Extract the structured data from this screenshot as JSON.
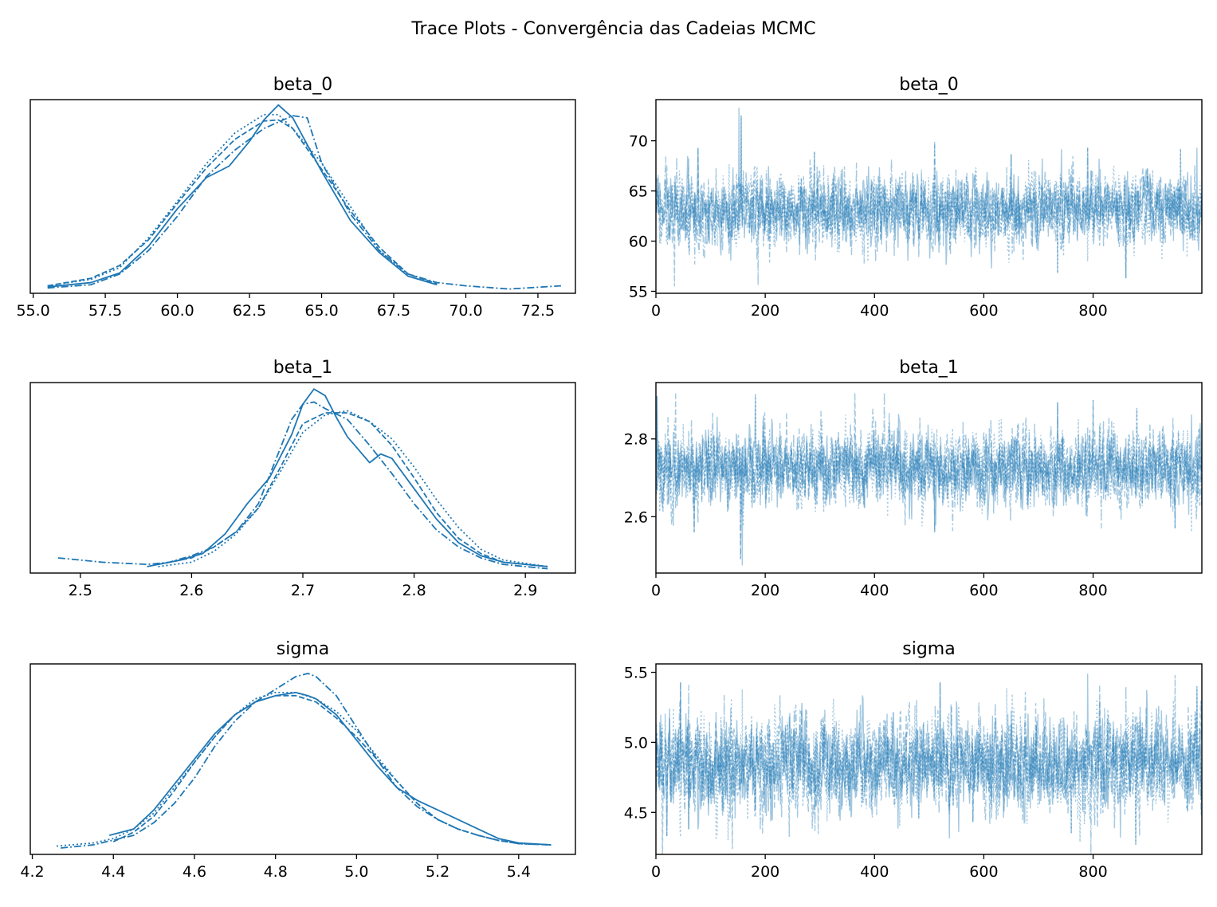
{
  "figure": {
    "suptitle": "Trace Plots - Convergência das Cadeias MCMC",
    "line_color": "#1f77b4",
    "trace_alpha": 0.4
  },
  "chart_data": [
    {
      "type": "line",
      "id": "kde-beta0",
      "title": "beta_0",
      "xlim": [
        54.9,
        73.8
      ],
      "ylim": [
        -0.004,
        0.177
      ],
      "xticks": [
        55.0,
        57.5,
        60.0,
        62.5,
        65.0,
        67.5,
        70.0,
        72.5
      ],
      "xtick_labels": [
        "55.0",
        "57.5",
        "60.0",
        "62.5",
        "65.0",
        "67.5",
        "70.0",
        "72.5"
      ],
      "yticks": [],
      "series": [
        {
          "linestyle": "solid",
          "x": [
            55.5,
            57.0,
            58.0,
            59.0,
            60.0,
            61.0,
            61.8,
            62.5,
            63.0,
            63.5,
            64.0,
            65.0,
            66.0,
            67.0,
            68.0,
            69.0
          ],
          "y": [
            0.002,
            0.006,
            0.015,
            0.04,
            0.075,
            0.104,
            0.115,
            0.138,
            0.158,
            0.172,
            0.16,
            0.11,
            0.064,
            0.034,
            0.012,
            0.004
          ]
        },
        {
          "linestyle": "dashed",
          "x": [
            55.5,
            57.0,
            58.0,
            59.0,
            60.0,
            61.0,
            62.0,
            63.0,
            63.5,
            64.0,
            65.0,
            66.0,
            67.0,
            68.0,
            69.0
          ],
          "y": [
            0.003,
            0.01,
            0.022,
            0.046,
            0.08,
            0.113,
            0.14,
            0.157,
            0.158,
            0.15,
            0.112,
            0.073,
            0.039,
            0.014,
            0.005
          ]
        },
        {
          "linestyle": "dashdot",
          "x": [
            55.5,
            57.0,
            58.0,
            59.0,
            60.0,
            61.0,
            62.0,
            63.0,
            64.0,
            64.5,
            65.0,
            66.0,
            67.0,
            68.0,
            69.0,
            70.0,
            71.5,
            73.3
          ],
          "y": [
            0.001,
            0.004,
            0.014,
            0.036,
            0.068,
            0.105,
            0.13,
            0.15,
            0.162,
            0.16,
            0.118,
            0.07,
            0.036,
            0.014,
            0.006,
            0.003,
            0.0,
            0.003
          ]
        },
        {
          "linestyle": "dotted",
          "x": [
            55.5,
            57.0,
            58.0,
            59.0,
            60.0,
            61.0,
            62.0,
            63.0,
            63.5,
            64.0,
            65.0,
            66.0,
            67.0,
            68.0,
            69.0
          ],
          "y": [
            0.003,
            0.009,
            0.02,
            0.048,
            0.082,
            0.117,
            0.146,
            0.163,
            0.163,
            0.15,
            0.118,
            0.077,
            0.036,
            0.012,
            0.004
          ]
        }
      ]
    },
    {
      "type": "line",
      "id": "trace-beta0",
      "title": "beta_0",
      "xlim": [
        0,
        999
      ],
      "ylim": [
        54.8,
        74.1
      ],
      "xticks": [
        0,
        200,
        400,
        600,
        800
      ],
      "xtick_labels": [
        "0",
        "200",
        "400",
        "600",
        "800"
      ],
      "yticks": [
        55,
        60,
        65,
        70
      ],
      "ytick_labels": [
        "55",
        "60",
        "65",
        "70"
      ],
      "n_draws": 1000,
      "center": 63.1,
      "spread": 1.75,
      "extremes": [
        [
          152,
          73.3
        ],
        [
          34,
          55.5
        ],
        [
          187,
          55.6
        ],
        [
          156,
          72.5
        ],
        [
          77,
          69.3
        ],
        [
          510,
          69.9
        ],
        [
          790,
          69.3
        ],
        [
          960,
          69.2
        ],
        [
          650,
          68.7
        ],
        [
          860,
          56.3
        ],
        [
          290,
          68.9
        ],
        [
          735,
          56.8
        ],
        [
          990,
          69.3
        ]
      ],
      "series": [
        {
          "linestyle": "solid"
        },
        {
          "linestyle": "dashed"
        },
        {
          "linestyle": "dashdot"
        },
        {
          "linestyle": "dotted"
        }
      ]
    },
    {
      "type": "line",
      "id": "kde-beta1",
      "title": "beta_1",
      "xlim": [
        2.455,
        2.945
      ],
      "ylim": [
        -0.2,
        8.6
      ],
      "xticks": [
        2.5,
        2.6,
        2.7,
        2.8,
        2.9
      ],
      "xtick_labels": [
        "2.5",
        "2.6",
        "2.7",
        "2.8",
        "2.9"
      ],
      "yticks": [],
      "series": [
        {
          "linestyle": "solid",
          "x": [
            2.56,
            2.59,
            2.61,
            2.63,
            2.65,
            2.67,
            2.69,
            2.7,
            2.71,
            2.72,
            2.73,
            2.74,
            2.75,
            2.76,
            2.77,
            2.78,
            2.8,
            2.82,
            2.84,
            2.86,
            2.88,
            2.92
          ],
          "y": [
            0.1,
            0.4,
            0.7,
            1.6,
            3.0,
            4.2,
            6.2,
            7.6,
            8.3,
            8.0,
            7.0,
            6.1,
            5.5,
            4.9,
            5.3,
            5.1,
            3.7,
            2.3,
            1.2,
            0.6,
            0.3,
            0.1
          ]
        },
        {
          "linestyle": "dashed",
          "x": [
            2.57,
            2.6,
            2.62,
            2.64,
            2.66,
            2.68,
            2.7,
            2.72,
            2.74,
            2.76,
            2.78,
            2.8,
            2.82,
            2.84,
            2.86,
            2.88,
            2.92
          ],
          "y": [
            0.2,
            0.5,
            1.0,
            1.7,
            2.8,
            4.7,
            6.7,
            7.2,
            7.2,
            6.8,
            5.7,
            4.2,
            2.6,
            1.4,
            0.7,
            0.3,
            0.1
          ]
        },
        {
          "linestyle": "dashdot",
          "x": [
            2.48,
            2.52,
            2.56,
            2.58,
            2.6,
            2.62,
            2.64,
            2.66,
            2.68,
            2.69,
            2.7,
            2.71,
            2.72,
            2.74,
            2.76,
            2.78,
            2.8,
            2.82,
            2.84,
            2.86,
            2.88,
            2.92
          ],
          "y": [
            0.5,
            0.3,
            0.2,
            0.3,
            0.6,
            1.0,
            1.7,
            3.0,
            5.6,
            6.9,
            7.6,
            7.7,
            7.4,
            6.9,
            5.7,
            4.4,
            3.0,
            1.8,
            1.0,
            0.5,
            0.2,
            0.0
          ]
        },
        {
          "linestyle": "dotted",
          "x": [
            2.57,
            2.6,
            2.62,
            2.64,
            2.66,
            2.68,
            2.7,
            2.72,
            2.74,
            2.76,
            2.78,
            2.8,
            2.82,
            2.84,
            2.86,
            2.88,
            2.92
          ],
          "y": [
            0.1,
            0.3,
            0.8,
            1.6,
            2.8,
            4.5,
            6.3,
            7.1,
            7.3,
            6.8,
            6.0,
            4.7,
            3.2,
            1.9,
            0.9,
            0.4,
            0.1
          ]
        }
      ]
    },
    {
      "type": "line",
      "id": "trace-beta1",
      "title": "beta_1",
      "xlim": [
        0,
        999
      ],
      "ylim": [
        2.455,
        2.945
      ],
      "xticks": [
        0,
        200,
        400,
        600,
        800
      ],
      "xtick_labels": [
        "0",
        "200",
        "400",
        "600",
        "800"
      ],
      "yticks": [
        2.6,
        2.8
      ],
      "ytick_labels": [
        "2.6",
        "2.8"
      ],
      "n_draws": 1000,
      "center": 2.725,
      "spread": 0.048,
      "extremes": [
        [
          158,
          2.475
        ],
        [
          36,
          2.92
        ],
        [
          418,
          2.92
        ],
        [
          182,
          2.915
        ],
        [
          2,
          2.91
        ],
        [
          155,
          2.49
        ],
        [
          735,
          2.895
        ],
        [
          800,
          2.9
        ],
        [
          510,
          2.56
        ],
        [
          70,
          2.56
        ],
        [
          950,
          2.57
        ],
        [
          880,
          2.88
        ]
      ],
      "series": [
        {
          "linestyle": "solid"
        },
        {
          "linestyle": "dashed"
        },
        {
          "linestyle": "dashdot"
        },
        {
          "linestyle": "dotted"
        }
      ]
    },
    {
      "type": "line",
      "id": "kde-sigma",
      "title": "sigma",
      "xlim": [
        4.195,
        5.54
      ],
      "ylim": [
        -0.1,
        2.9
      ],
      "xticks": [
        4.2,
        4.4,
        4.6,
        4.8,
        5.0,
        5.2,
        5.4
      ],
      "xtick_labels": [
        "4.2",
        "4.4",
        "4.6",
        "4.8",
        "5.0",
        "5.2",
        "5.4"
      ],
      "yticks": [],
      "series": [
        {
          "linestyle": "solid",
          "x": [
            4.39,
            4.45,
            4.5,
            4.55,
            4.6,
            4.65,
            4.7,
            4.75,
            4.8,
            4.85,
            4.88,
            4.9,
            4.95,
            5.0,
            5.05,
            5.1,
            5.15,
            5.2,
            5.25,
            5.3,
            5.35,
            5.4,
            5.48
          ],
          "y": [
            0.2,
            0.3,
            0.6,
            1.0,
            1.4,
            1.8,
            2.1,
            2.3,
            2.4,
            2.45,
            2.4,
            2.35,
            2.1,
            1.7,
            1.3,
            0.95,
            0.75,
            0.6,
            0.45,
            0.3,
            0.15,
            0.08,
            0.05
          ]
        },
        {
          "linestyle": "dashed",
          "x": [
            4.4,
            4.45,
            4.5,
            4.55,
            4.6,
            4.65,
            4.7,
            4.75,
            4.8,
            4.85,
            4.9,
            4.95,
            5.0,
            5.05,
            5.1,
            5.15,
            5.2,
            5.25,
            5.3,
            5.35,
            5.4,
            5.48
          ],
          "y": [
            0.1,
            0.25,
            0.5,
            0.9,
            1.35,
            1.75,
            2.1,
            2.3,
            2.4,
            2.4,
            2.3,
            2.05,
            1.75,
            1.4,
            1.05,
            0.7,
            0.45,
            0.3,
            0.2,
            0.12,
            0.07,
            0.05
          ]
        },
        {
          "linestyle": "dashdot",
          "x": [
            4.27,
            4.35,
            4.45,
            4.5,
            4.55,
            4.6,
            4.65,
            4.7,
            4.75,
            4.8,
            4.85,
            4.88,
            4.9,
            4.95,
            5.0,
            5.05,
            5.1,
            5.15,
            5.2,
            5.25,
            5.3,
            5.35,
            5.4,
            5.48
          ],
          "y": [
            0.0,
            0.05,
            0.2,
            0.4,
            0.7,
            1.1,
            1.6,
            2.0,
            2.3,
            2.5,
            2.7,
            2.75,
            2.7,
            2.4,
            1.9,
            1.4,
            0.95,
            0.65,
            0.45,
            0.3,
            0.2,
            0.12,
            0.07,
            0.05
          ]
        },
        {
          "linestyle": "dotted",
          "x": [
            4.26,
            4.35,
            4.4,
            4.45,
            4.5,
            4.55,
            4.6,
            4.65,
            4.7,
            4.75,
            4.8,
            4.85,
            4.9,
            4.95,
            5.0,
            5.05,
            5.1,
            5.15,
            5.2,
            5.25,
            5.3,
            5.35,
            5.4,
            5.48
          ],
          "y": [
            0.03,
            0.08,
            0.15,
            0.3,
            0.55,
            0.95,
            1.35,
            1.75,
            2.1,
            2.35,
            2.45,
            2.45,
            2.35,
            2.15,
            1.85,
            1.45,
            1.05,
            0.7,
            0.45,
            0.3,
            0.2,
            0.12,
            0.07,
            0.05
          ]
        }
      ]
    },
    {
      "type": "line",
      "id": "trace-sigma",
      "title": "sigma",
      "xlim": [
        0,
        999
      ],
      "ylim": [
        4.2,
        5.56
      ],
      "xticks": [
        0,
        200,
        400,
        600,
        800
      ],
      "xtick_labels": [
        "0",
        "200",
        "400",
        "600",
        "800"
      ],
      "yticks": [
        4.5,
        5.0,
        5.5
      ],
      "ytick_labels": [
        "4.5",
        "5.0",
        "5.5"
      ],
      "n_draws": 1000,
      "center": 4.84,
      "spread": 0.17,
      "extremes": [
        [
          790,
          5.49
        ],
        [
          950,
          5.48
        ],
        [
          860,
          5.4
        ],
        [
          990,
          5.4
        ],
        [
          45,
          5.43
        ],
        [
          60,
          5.41
        ],
        [
          520,
          5.43
        ],
        [
          878,
          4.27
        ],
        [
          20,
          4.33
        ],
        [
          60,
          4.38
        ],
        [
          580,
          4.43
        ],
        [
          760,
          4.35
        ],
        [
          850,
          4.32
        ]
      ],
      "series": [
        {
          "linestyle": "solid"
        },
        {
          "linestyle": "dashed"
        },
        {
          "linestyle": "dashdot"
        },
        {
          "linestyle": "dotted"
        }
      ]
    }
  ]
}
